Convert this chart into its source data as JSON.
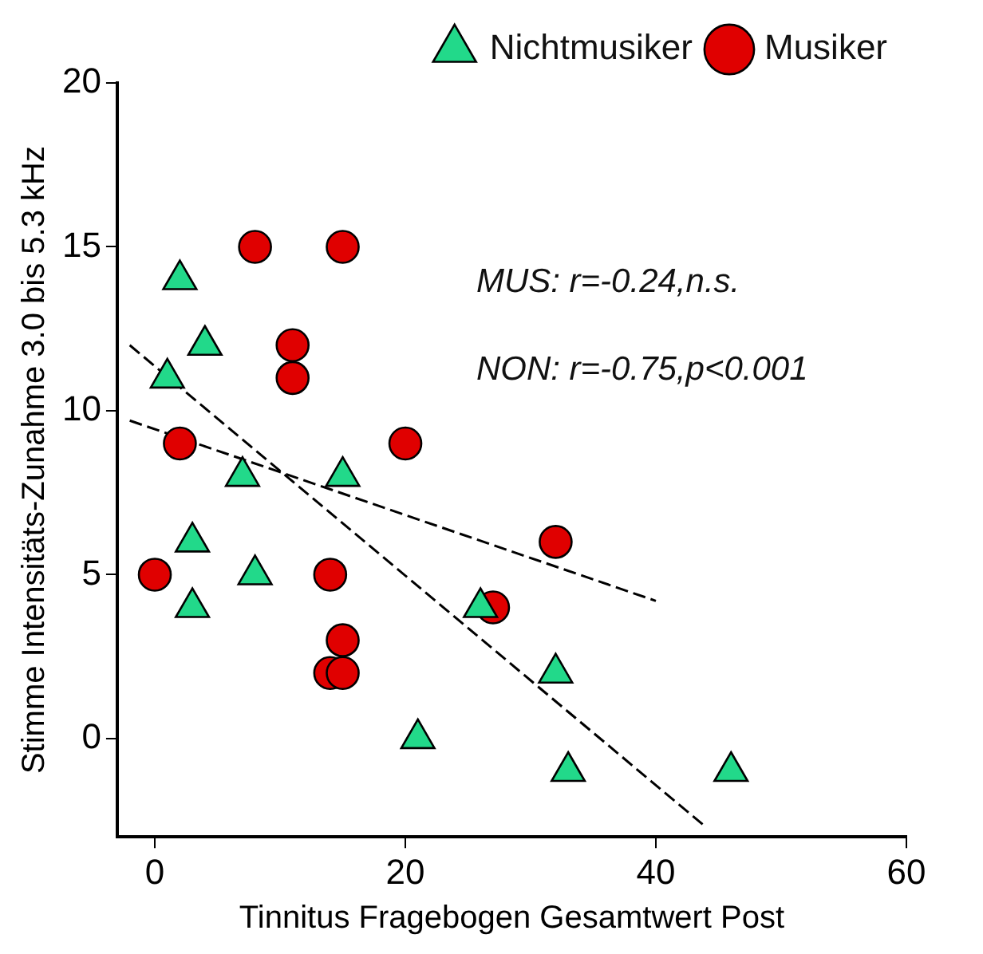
{
  "chart_data": {
    "type": "scatter",
    "xlabel": "Tinnitus Fragebogen Gesamtwert Post",
    "ylabel": "Stimme Intensitäts-Zunahme 3.0 bis 5.3 kHz",
    "xlim": [
      -3,
      60
    ],
    "xticks": [
      0,
      20,
      40,
      60
    ],
    "ylim": [
      -3,
      20
    ],
    "yticks": [
      0,
      5,
      10,
      15,
      20
    ],
    "grid": false,
    "legend": "top right",
    "annotations": [
      "MUS: r=-0.24,n.s.",
      "NON: r=-0.75,p<0.001"
    ],
    "series": [
      {
        "name": "Nichtmusiker",
        "marker": "triangle",
        "color": "#22d98a",
        "x": [
          2,
          4,
          1,
          7,
          15,
          3,
          8,
          3,
          26,
          32,
          21,
          33,
          46
        ],
        "values": [
          14,
          12,
          11,
          8,
          8,
          6,
          5,
          4,
          4,
          2,
          0,
          -1,
          -1
        ]
      },
      {
        "name": "Musiker",
        "marker": "circle",
        "color": "#e00000",
        "x": [
          8,
          15,
          11,
          11,
          2,
          20,
          32,
          0,
          14,
          27,
          15,
          14,
          15
        ],
        "values": [
          15,
          15,
          12,
          11,
          9,
          9,
          6,
          5,
          5,
          4,
          3,
          2,
          2
        ]
      },
      {
        "type": "line",
        "marker": "none",
        "line_style": "dashed",
        "color": "#000000",
        "x": [
          -2,
          40
        ],
        "values": [
          9.7,
          4.2
        ]
      },
      {
        "type": "line",
        "marker": "none",
        "line_style": "dashed",
        "color": "#000000",
        "x": [
          -2,
          44
        ],
        "values": [
          12,
          -2.7
        ]
      }
    ]
  }
}
